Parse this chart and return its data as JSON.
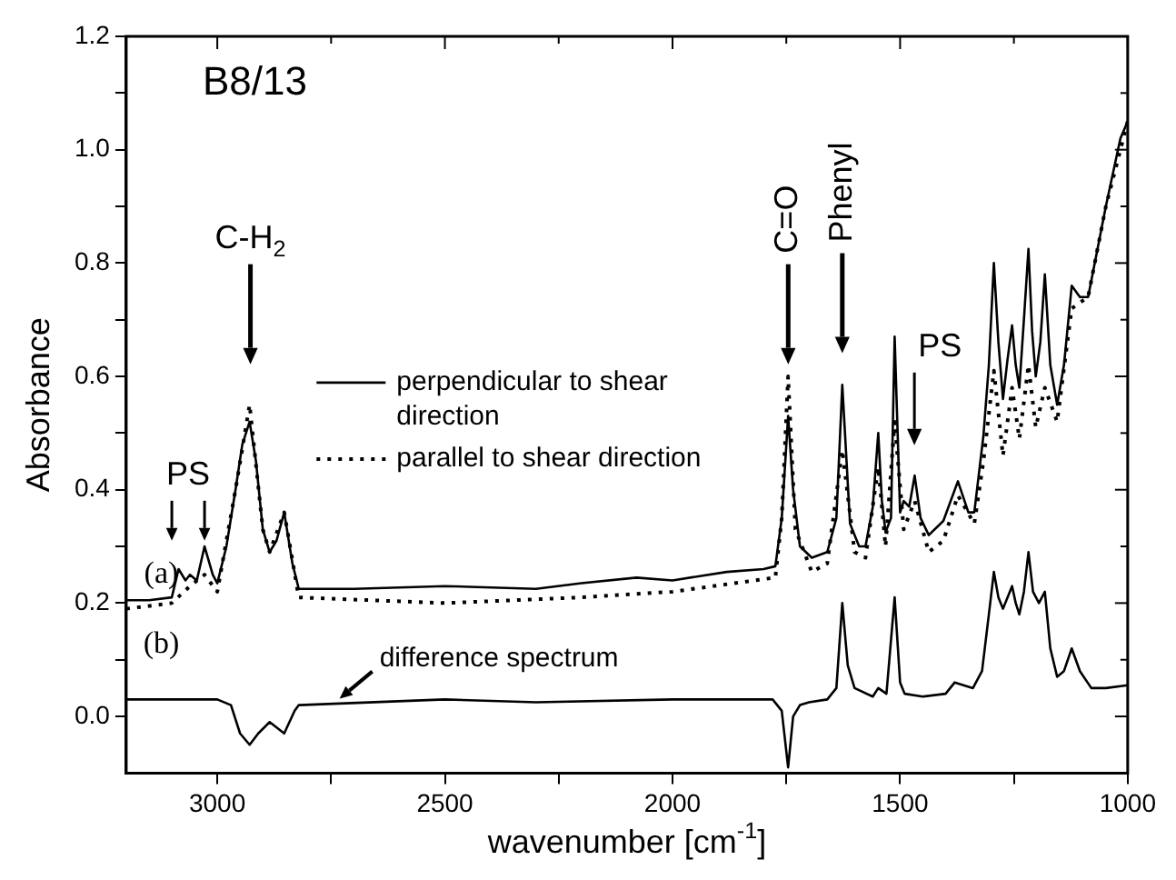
{
  "chart_data": {
    "type": "line",
    "title": "B8/13",
    "xlabel": "wavenumber [cm$^{-1}$]",
    "ylabel": "Absorbance",
    "xlim": [
      3200,
      1000
    ],
    "xticks": [
      3000,
      {
        "value": 2750,
        "label": null
      },
      2500,
      {
        "value": 2250,
        "label": null
      },
      2000,
      {
        "value": 1750,
        "label": null
      },
      1500,
      {
        "value": 1250,
        "label": null
      },
      1000
    ],
    "ylim": [
      -0.1,
      1.2
    ],
    "yticks": [
      {
        "value": 0,
        "label": "0.0"
      },
      {
        "value": 0.1,
        "label": null
      },
      {
        "value": 0.2,
        "label": "0.2"
      },
      {
        "value": 0.3,
        "label": null
      },
      {
        "value": 0.4,
        "label": "0.4"
      },
      {
        "value": 0.5,
        "label": null
      },
      {
        "value": 0.6,
        "label": "0.6"
      },
      {
        "value": 0.7,
        "label": null
      },
      {
        "value": 0.8,
        "label": "0.8"
      },
      {
        "value": 0.9,
        "label": null
      },
      {
        "value": 1.0,
        "label": "1.0"
      },
      {
        "value": 1.1,
        "label": null
      },
      {
        "value": 1.2,
        "label": "1.2"
      }
    ],
    "grid": false,
    "legend": "left",
    "marker": "none",
    "series": [
      {
        "name": "perpendicular to shear direction",
        "color": "#000000",
        "line_style": "solid",
        "x": [
          3200,
          3150,
          3100,
          3085,
          3070,
          3060,
          3045,
          3028,
          3010,
          3000,
          2980,
          2960,
          2945,
          2929,
          2915,
          2900,
          2885,
          2870,
          2853,
          2835,
          2821,
          2700,
          2500,
          2300,
          2200,
          2079,
          2000,
          1881,
          1800,
          1774,
          1760,
          1746,
          1735,
          1720,
          1694,
          1660,
          1640,
          1627,
          1610,
          1590,
          1576,
          1560,
          1548,
          1540,
          1532,
          1520,
          1512,
          1500,
          1492,
          1480,
          1468,
          1455,
          1437,
          1405,
          1373,
          1350,
          1337,
          1317,
          1305,
          1294,
          1284,
          1274,
          1264,
          1254,
          1246,
          1238,
          1228,
          1218,
          1210,
          1202,
          1192,
          1182,
          1170,
          1155,
          1140,
          1123,
          1105,
          1087,
          1048,
          1016,
          1000
        ],
        "values": [
          0.205,
          0.205,
          0.21,
          0.26,
          0.24,
          0.25,
          0.24,
          0.3,
          0.25,
          0.235,
          0.3,
          0.4,
          0.48,
          0.52,
          0.45,
          0.33,
          0.29,
          0.31,
          0.36,
          0.27,
          0.225,
          0.225,
          0.23,
          0.225,
          0.235,
          0.245,
          0.24,
          0.255,
          0.26,
          0.265,
          0.35,
          0.53,
          0.4,
          0.3,
          0.28,
          0.29,
          0.35,
          0.585,
          0.34,
          0.3,
          0.3,
          0.37,
          0.5,
          0.38,
          0.325,
          0.35,
          0.67,
          0.36,
          0.38,
          0.37,
          0.425,
          0.35,
          0.32,
          0.345,
          0.415,
          0.36,
          0.36,
          0.495,
          0.62,
          0.8,
          0.66,
          0.56,
          0.63,
          0.69,
          0.62,
          0.58,
          0.7,
          0.825,
          0.68,
          0.6,
          0.66,
          0.78,
          0.62,
          0.55,
          0.62,
          0.76,
          0.74,
          0.74,
          0.9,
          1.02,
          1.05
        ]
      },
      {
        "name": "parallel to shear direction",
        "color": "#000000",
        "line_style": "dotted",
        "x": [
          3200,
          3100,
          3060,
          3028,
          3000,
          2960,
          2929,
          2900,
          2885,
          2853,
          2821,
          2500,
          2200,
          2000,
          1774,
          1760,
          1746,
          1730,
          1694,
          1660,
          1627,
          1600,
          1576,
          1548,
          1532,
          1512,
          1492,
          1468,
          1437,
          1405,
          1373,
          1337,
          1317,
          1294,
          1274,
          1254,
          1238,
          1218,
          1202,
          1182,
          1155,
          1123,
          1087,
          1048,
          1000
        ],
        "values": [
          0.19,
          0.2,
          0.23,
          0.25,
          0.22,
          0.4,
          0.55,
          0.33,
          0.29,
          0.36,
          0.21,
          0.2,
          0.21,
          0.22,
          0.245,
          0.35,
          0.6,
          0.33,
          0.255,
          0.27,
          0.47,
          0.29,
          0.28,
          0.44,
          0.3,
          0.52,
          0.33,
          0.38,
          0.29,
          0.31,
          0.39,
          0.34,
          0.45,
          0.61,
          0.46,
          0.58,
          0.49,
          0.62,
          0.51,
          0.58,
          0.52,
          0.72,
          0.74,
          0.9,
          1.05
        ]
      },
      {
        "color": "#000000",
        "line_style": "solid",
        "x": [
          3200,
          3000,
          2970,
          2950,
          2929,
          2910,
          2885,
          2853,
          2830,
          2821,
          2500,
          2300,
          2000,
          1780,
          1760,
          1746,
          1735,
          1720,
          1700,
          1660,
          1640,
          1627,
          1615,
          1600,
          1560,
          1548,
          1530,
          1512,
          1500,
          1490,
          1450,
          1400,
          1380,
          1340,
          1320,
          1305,
          1294,
          1284,
          1274,
          1264,
          1254,
          1246,
          1238,
          1228,
          1218,
          1208,
          1195,
          1182,
          1170,
          1155,
          1140,
          1123,
          1105,
          1080,
          1048,
          1000
        ],
        "values": [
          0.03,
          0.03,
          0.02,
          -0.03,
          -0.05,
          -0.03,
          -0.01,
          -0.03,
          0.01,
          0.02,
          0.03,
          0.025,
          0.03,
          0.03,
          0.01,
          -0.09,
          0.0,
          0.02,
          0.025,
          0.03,
          0.05,
          0.2,
          0.09,
          0.05,
          0.035,
          0.05,
          0.04,
          0.21,
          0.06,
          0.04,
          0.035,
          0.04,
          0.06,
          0.05,
          0.08,
          0.18,
          0.255,
          0.21,
          0.19,
          0.21,
          0.23,
          0.2,
          0.18,
          0.22,
          0.29,
          0.22,
          0.2,
          0.22,
          0.12,
          0.07,
          0.08,
          0.12,
          0.08,
          0.05,
          0.05,
          0.055
        ]
      }
    ],
    "annotations": [
      "C-H$_{2}$",
      {
        "text": "PS",
        "x": 3028,
        "y": 0.31
      },
      "C=O",
      "Phenyl",
      "PS",
      "difference spectrum",
      "(a)",
      "(b)"
    ]
  }
}
